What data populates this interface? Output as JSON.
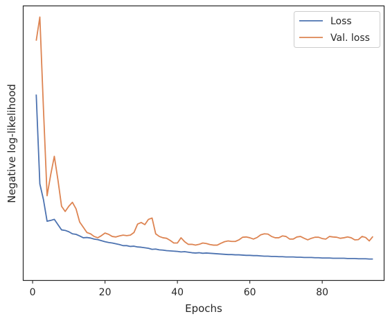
{
  "chart_data": {
    "type": "line",
    "title": "",
    "xlabel": "Epochs",
    "ylabel": "Negative log-likelihood",
    "xlim": [
      -2.5,
      97
    ],
    "ylim": [
      0,
      1
    ],
    "y_ticks_shown": false,
    "x_ticks": [
      0,
      20,
      40,
      60,
      80
    ],
    "grid": false,
    "legend_placement": "top-right",
    "colors": {
      "Loss": "#4c72b0",
      "Val. loss": "#dd8452"
    },
    "x": [
      1,
      2,
      3,
      4,
      5,
      6,
      7,
      8,
      9,
      10,
      11,
      12,
      13,
      14,
      15,
      16,
      17,
      18,
      19,
      20,
      21,
      22,
      23,
      24,
      25,
      26,
      27,
      28,
      29,
      30,
      31,
      32,
      33,
      34,
      35,
      36,
      37,
      38,
      39,
      40,
      41,
      42,
      43,
      44,
      45,
      46,
      47,
      48,
      49,
      50,
      51,
      52,
      53,
      54,
      55,
      56,
      57,
      58,
      59,
      60,
      61,
      62,
      63,
      64,
      65,
      66,
      67,
      68,
      69,
      70,
      71,
      72,
      73,
      74,
      75,
      76,
      77,
      78,
      79,
      80,
      81,
      82,
      83,
      84,
      85,
      86,
      87,
      88,
      89,
      90,
      91,
      92,
      93,
      94
    ],
    "series": [
      {
        "name": "Loss",
        "values": [
          0.685,
          0.345,
          0.285,
          0.203,
          0.206,
          0.21,
          0.19,
          0.17,
          0.168,
          0.163,
          0.155,
          0.153,
          0.147,
          0.14,
          0.141,
          0.139,
          0.135,
          0.133,
          0.129,
          0.125,
          0.122,
          0.12,
          0.117,
          0.114,
          0.11,
          0.11,
          0.107,
          0.108,
          0.105,
          0.104,
          0.102,
          0.1,
          0.096,
          0.097,
          0.094,
          0.093,
          0.091,
          0.09,
          0.089,
          0.088,
          0.086,
          0.087,
          0.085,
          0.083,
          0.082,
          0.083,
          0.081,
          0.082,
          0.081,
          0.08,
          0.079,
          0.078,
          0.077,
          0.076,
          0.076,
          0.075,
          0.075,
          0.074,
          0.073,
          0.073,
          0.072,
          0.072,
          0.071,
          0.07,
          0.07,
          0.069,
          0.069,
          0.068,
          0.068,
          0.067,
          0.067,
          0.067,
          0.066,
          0.066,
          0.065,
          0.065,
          0.065,
          0.064,
          0.064,
          0.063,
          0.063,
          0.063,
          0.062,
          0.062,
          0.062,
          0.062,
          0.061,
          0.061,
          0.061,
          0.06,
          0.06,
          0.06,
          0.059,
          0.059
        ]
      },
      {
        "name": "Val. loss",
        "values": [
          0.89,
          0.98,
          0.63,
          0.3,
          0.38,
          0.45,
          0.36,
          0.26,
          0.24,
          0.26,
          0.275,
          0.25,
          0.2,
          0.18,
          0.16,
          0.155,
          0.145,
          0.14,
          0.148,
          0.158,
          0.153,
          0.145,
          0.143,
          0.147,
          0.15,
          0.148,
          0.15,
          0.16,
          0.192,
          0.198,
          0.19,
          0.21,
          0.215,
          0.155,
          0.145,
          0.14,
          0.138,
          0.13,
          0.12,
          0.12,
          0.14,
          0.125,
          0.115,
          0.115,
          0.112,
          0.115,
          0.12,
          0.118,
          0.114,
          0.112,
          0.112,
          0.119,
          0.125,
          0.128,
          0.126,
          0.126,
          0.132,
          0.142,
          0.143,
          0.14,
          0.135,
          0.141,
          0.151,
          0.155,
          0.154,
          0.145,
          0.14,
          0.14,
          0.147,
          0.145,
          0.135,
          0.135,
          0.143,
          0.145,
          0.138,
          0.132,
          0.138,
          0.142,
          0.142,
          0.137,
          0.135,
          0.145,
          0.143,
          0.142,
          0.138,
          0.14,
          0.143,
          0.14,
          0.132,
          0.133,
          0.145,
          0.141,
          0.128,
          0.145
        ]
      }
    ]
  }
}
